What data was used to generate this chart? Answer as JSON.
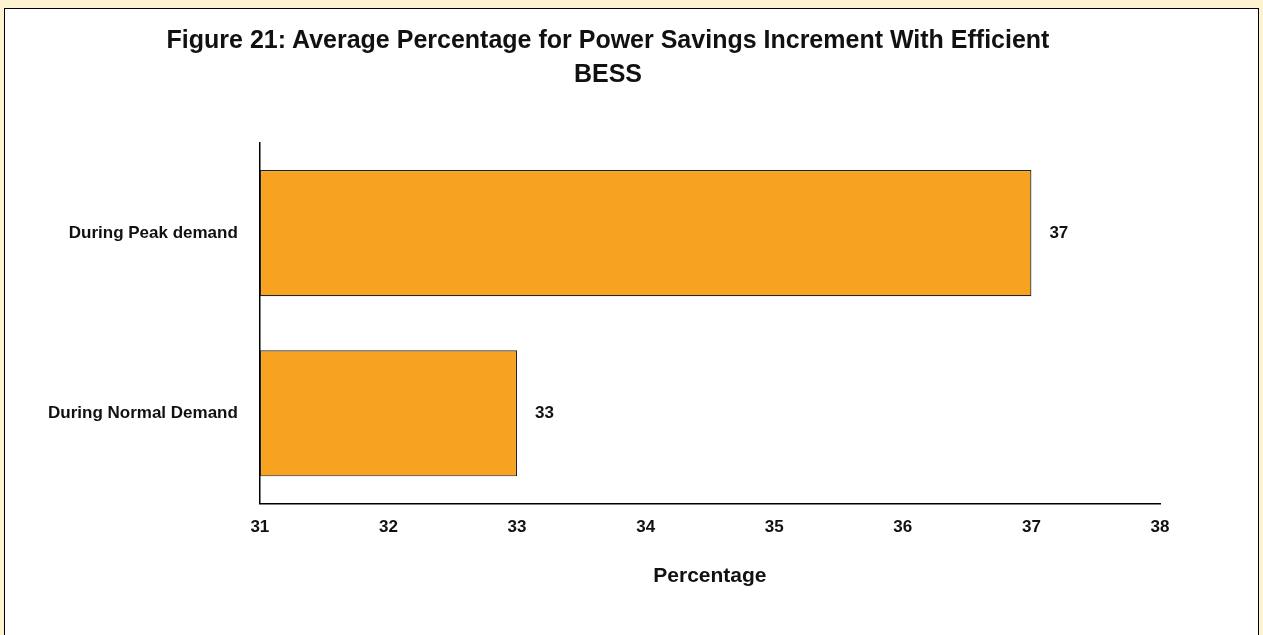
{
  "chart_data": {
    "type": "bar",
    "orientation": "horizontal",
    "title": "Figure  21: Average Percentage for Power Savings Increment With Efficient BESS",
    "xlabel": "Percentage",
    "categories": [
      "During Peak demand",
      "During Normal Demand"
    ],
    "values": [
      37,
      33
    ],
    "color": "#f7a221",
    "xlim": [
      31,
      38
    ],
    "xticks": [
      31,
      32,
      33,
      34,
      35,
      36,
      37,
      38
    ],
    "data_labels": true,
    "legend": false,
    "grid": false
  }
}
